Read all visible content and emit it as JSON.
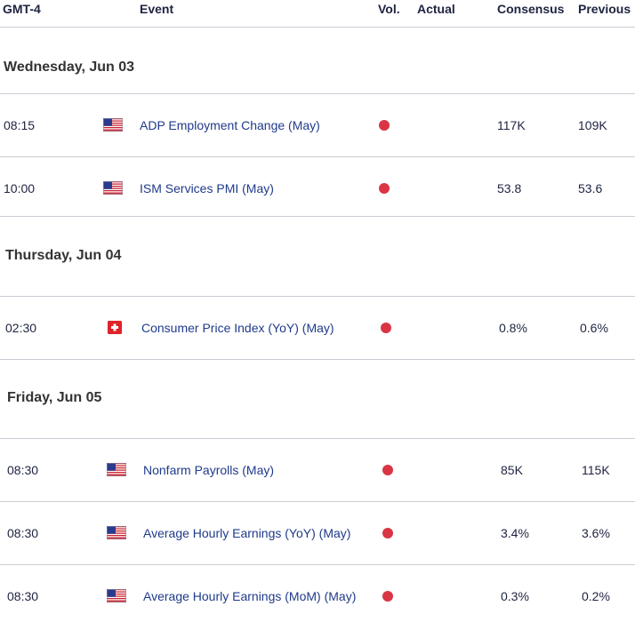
{
  "header": {
    "timezone": "GMT-4",
    "event": "Event",
    "vol": "Vol.",
    "actual": "Actual",
    "consensus": "Consensus",
    "previous": "Previous"
  },
  "days": [
    {
      "label": "Wednesday, Jun 03",
      "events": [
        {
          "time": "08:15",
          "country_icon": "us-flag-icon",
          "name": "ADP Employment Change (May)",
          "volatility": "high",
          "actual": "",
          "consensus": "117K",
          "previous": "109K"
        },
        {
          "time": "10:00",
          "country_icon": "us-flag-icon",
          "name": "ISM Services PMI (May)",
          "volatility": "high",
          "actual": "",
          "consensus": "53.8",
          "previous": "53.6"
        }
      ]
    },
    {
      "label": "Thursday, Jun 04",
      "events": [
        {
          "time": "02:30",
          "country_icon": "switzerland-flag-icon",
          "name": "Consumer Price Index (YoY) (May)",
          "volatility": "high",
          "actual": "",
          "consensus": "0.8%",
          "previous": "0.6%"
        }
      ]
    },
    {
      "label": "Friday, Jun 05",
      "events": [
        {
          "time": "08:30",
          "country_icon": "us-flag-icon",
          "name": "Nonfarm Payrolls (May)",
          "volatility": "high",
          "actual": "",
          "consensus": "85K",
          "previous": "115K"
        },
        {
          "time": "08:30",
          "country_icon": "us-flag-icon",
          "name": "Average Hourly Earnings (YoY) (May)",
          "volatility": "high",
          "actual": "",
          "consensus": "3.4%",
          "previous": "3.6%"
        },
        {
          "time": "08:30",
          "country_icon": "us-flag-icon",
          "name": "Average Hourly Earnings (MoM) (May)",
          "volatility": "high",
          "actual": "",
          "consensus": "0.3%",
          "previous": "0.2%"
        }
      ]
    }
  ],
  "colors": {
    "volatility_high": "#d93545",
    "event_link": "#1f3a8a",
    "divider": "#c9ccd4"
  }
}
